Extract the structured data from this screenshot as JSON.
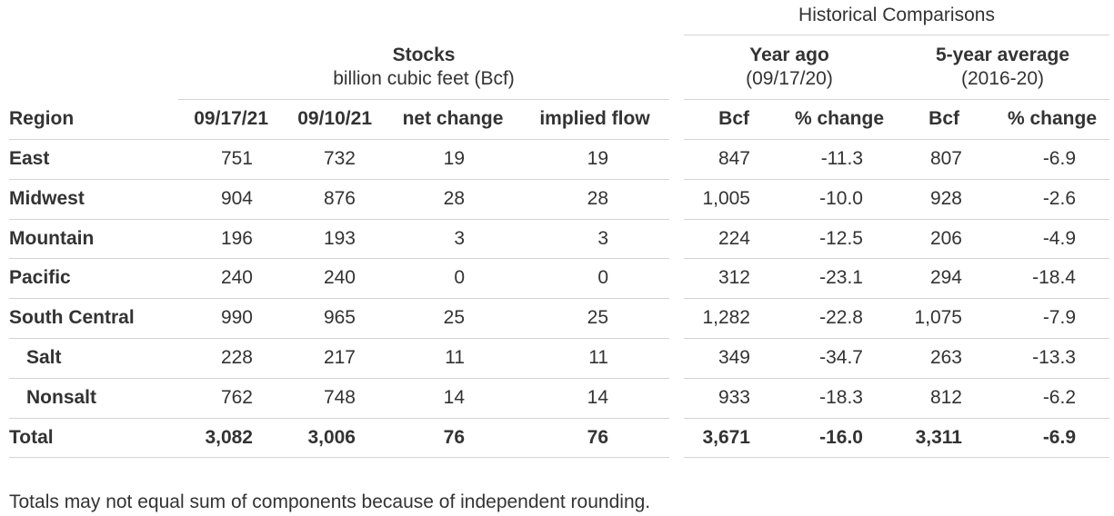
{
  "historical_title": "Historical Comparisons",
  "stocks": {
    "title": "Stocks",
    "subtitle": "billion cubic feet (Bcf)"
  },
  "year_ago": {
    "title": "Year ago",
    "subtitle": "(09/17/20)"
  },
  "five_year": {
    "title": "5-year average",
    "subtitle": "(2016-20)"
  },
  "columns": {
    "region": "Region",
    "current": "09/17/21",
    "prior": "09/10/21",
    "net_change": "net change",
    "implied_flow": "implied flow",
    "ya_bcf": "Bcf",
    "ya_pct": "% change",
    "fy_bcf": "Bcf",
    "fy_pct": "% change"
  },
  "rows": [
    {
      "region": "East",
      "current": "751",
      "prior": "732",
      "net": "19",
      "flow": "19",
      "ya_bcf": "847",
      "ya_pct": "-11.3",
      "fy_bcf": "807",
      "fy_pct": "-6.9"
    },
    {
      "region": "Midwest",
      "current": "904",
      "prior": "876",
      "net": "28",
      "flow": "28",
      "ya_bcf": "1,005",
      "ya_pct": "-10.0",
      "fy_bcf": "928",
      "fy_pct": "-2.6"
    },
    {
      "region": "Mountain",
      "current": "196",
      "prior": "193",
      "net": "3",
      "flow": "3",
      "ya_bcf": "224",
      "ya_pct": "-12.5",
      "fy_bcf": "206",
      "fy_pct": "-4.9"
    },
    {
      "region": "Pacific",
      "current": "240",
      "prior": "240",
      "net": "0",
      "flow": "0",
      "ya_bcf": "312",
      "ya_pct": "-23.1",
      "fy_bcf": "294",
      "fy_pct": "-18.4"
    },
    {
      "region": "South Central",
      "current": "990",
      "prior": "965",
      "net": "25",
      "flow": "25",
      "ya_bcf": "1,282",
      "ya_pct": "-22.8",
      "fy_bcf": "1,075",
      "fy_pct": "-7.9"
    },
    {
      "region": "Salt",
      "current": "228",
      "prior": "217",
      "net": "11",
      "flow": "11",
      "ya_bcf": "349",
      "ya_pct": "-34.7",
      "fy_bcf": "263",
      "fy_pct": "-13.3"
    },
    {
      "region": "Nonsalt",
      "current": "762",
      "prior": "748",
      "net": "14",
      "flow": "14",
      "ya_bcf": "933",
      "ya_pct": "-18.3",
      "fy_bcf": "812",
      "fy_pct": "-6.2"
    },
    {
      "region": "Total",
      "current": "3,082",
      "prior": "3,006",
      "net": "76",
      "flow": "76",
      "ya_bcf": "3,671",
      "ya_pct": "-16.0",
      "fy_bcf": "3,311",
      "fy_pct": "-6.9"
    }
  ],
  "footnote": "Totals may not equal sum of components because of independent rounding."
}
